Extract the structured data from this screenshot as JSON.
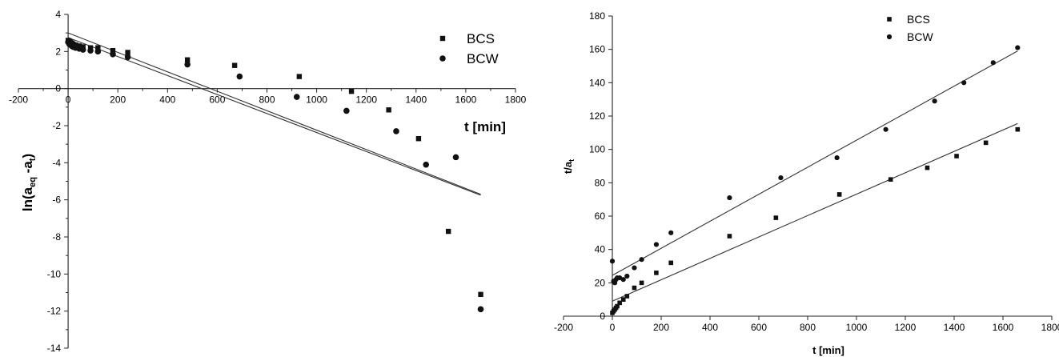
{
  "chart_data": [
    {
      "type": "scatter",
      "title": "",
      "xlabel": "t [min]",
      "ylabel": {
        "main": "ln(a",
        "sub1": "eq",
        "mid": " -a",
        "sub2": "t",
        "end": ")"
      },
      "xlim": [
        -200,
        1800
      ],
      "ylim": [
        -14,
        4
      ],
      "xticks": [
        -200,
        0,
        200,
        400,
        600,
        800,
        1000,
        1200,
        1400,
        1600,
        1800
      ],
      "yticks": [
        4,
        2,
        0,
        -2,
        -4,
        -6,
        -8,
        -10,
        -12,
        -14
      ],
      "legend_position": "top-right",
      "series": [
        {
          "name": "BCS",
          "marker": "square",
          "x": [
            0,
            5,
            10,
            15,
            20,
            30,
            45,
            60,
            90,
            120,
            180,
            240,
            480,
            670,
            930,
            1140,
            1290,
            1410,
            1530,
            1660
          ],
          "y": [
            2.6,
            2.55,
            2.5,
            2.45,
            2.4,
            2.35,
            2.3,
            2.25,
            2.2,
            2.2,
            2.05,
            1.95,
            1.55,
            1.25,
            0.65,
            -0.15,
            -1.15,
            -2.7,
            -7.7,
            -11.1
          ],
          "fit": {
            "x": [
              0,
              1660
            ],
            "y": [
              2.75,
              -5.75
            ]
          }
        },
        {
          "name": "BCW",
          "marker": "circle",
          "x": [
            0,
            5,
            10,
            15,
            20,
            30,
            45,
            60,
            90,
            120,
            180,
            240,
            480,
            690,
            920,
            1120,
            1320,
            1440,
            1560,
            1660
          ],
          "y": [
            2.5,
            2.4,
            2.35,
            2.3,
            2.25,
            2.2,
            2.15,
            2.1,
            2.05,
            2.0,
            1.85,
            1.7,
            1.3,
            0.65,
            -0.45,
            -1.2,
            -2.3,
            -4.1,
            -3.7,
            -11.9
          ],
          "fit": {
            "x": [
              0,
              1660
            ],
            "y": [
              3.0,
              -5.7
            ]
          }
        }
      ]
    },
    {
      "type": "scatter",
      "title": "",
      "xlabel": "t [min]",
      "ylabel": {
        "main": "t/a",
        "sub1": "t"
      },
      "xlim": [
        -200,
        1800
      ],
      "ylim": [
        0,
        180
      ],
      "xticks": [
        -200,
        0,
        200,
        400,
        600,
        800,
        1000,
        1200,
        1400,
        1600,
        1800
      ],
      "yticks": [
        0,
        20,
        40,
        60,
        80,
        100,
        120,
        140,
        160,
        180
      ],
      "legend_position": "top-center",
      "series": [
        {
          "name": "BCS",
          "marker": "square",
          "x": [
            0,
            5,
            10,
            15,
            20,
            30,
            45,
            60,
            90,
            120,
            180,
            240,
            480,
            670,
            930,
            1140,
            1290,
            1410,
            1530,
            1660
          ],
          "y": [
            2,
            3,
            4,
            5,
            6,
            8,
            10,
            12,
            17,
            20,
            26,
            32,
            48,
            59,
            73,
            82,
            89,
            96,
            104,
            112
          ],
          "fit": {
            "x": [
              0,
              1660
            ],
            "y": [
              9,
              115.5
            ]
          }
        },
        {
          "name": "BCW",
          "marker": "circle",
          "x": [
            0,
            5,
            10,
            15,
            20,
            30,
            45,
            60,
            90,
            120,
            180,
            240,
            480,
            690,
            920,
            1120,
            1320,
            1440,
            1560,
            1660
          ],
          "y": [
            33,
            21,
            20,
            22,
            23,
            23,
            22,
            24,
            29,
            34,
            43,
            50,
            71,
            83,
            95,
            112,
            129,
            140,
            152,
            161
          ],
          "fit": {
            "x": [
              0,
              1660
            ],
            "y": [
              24.5,
              159
            ]
          }
        }
      ]
    }
  ]
}
